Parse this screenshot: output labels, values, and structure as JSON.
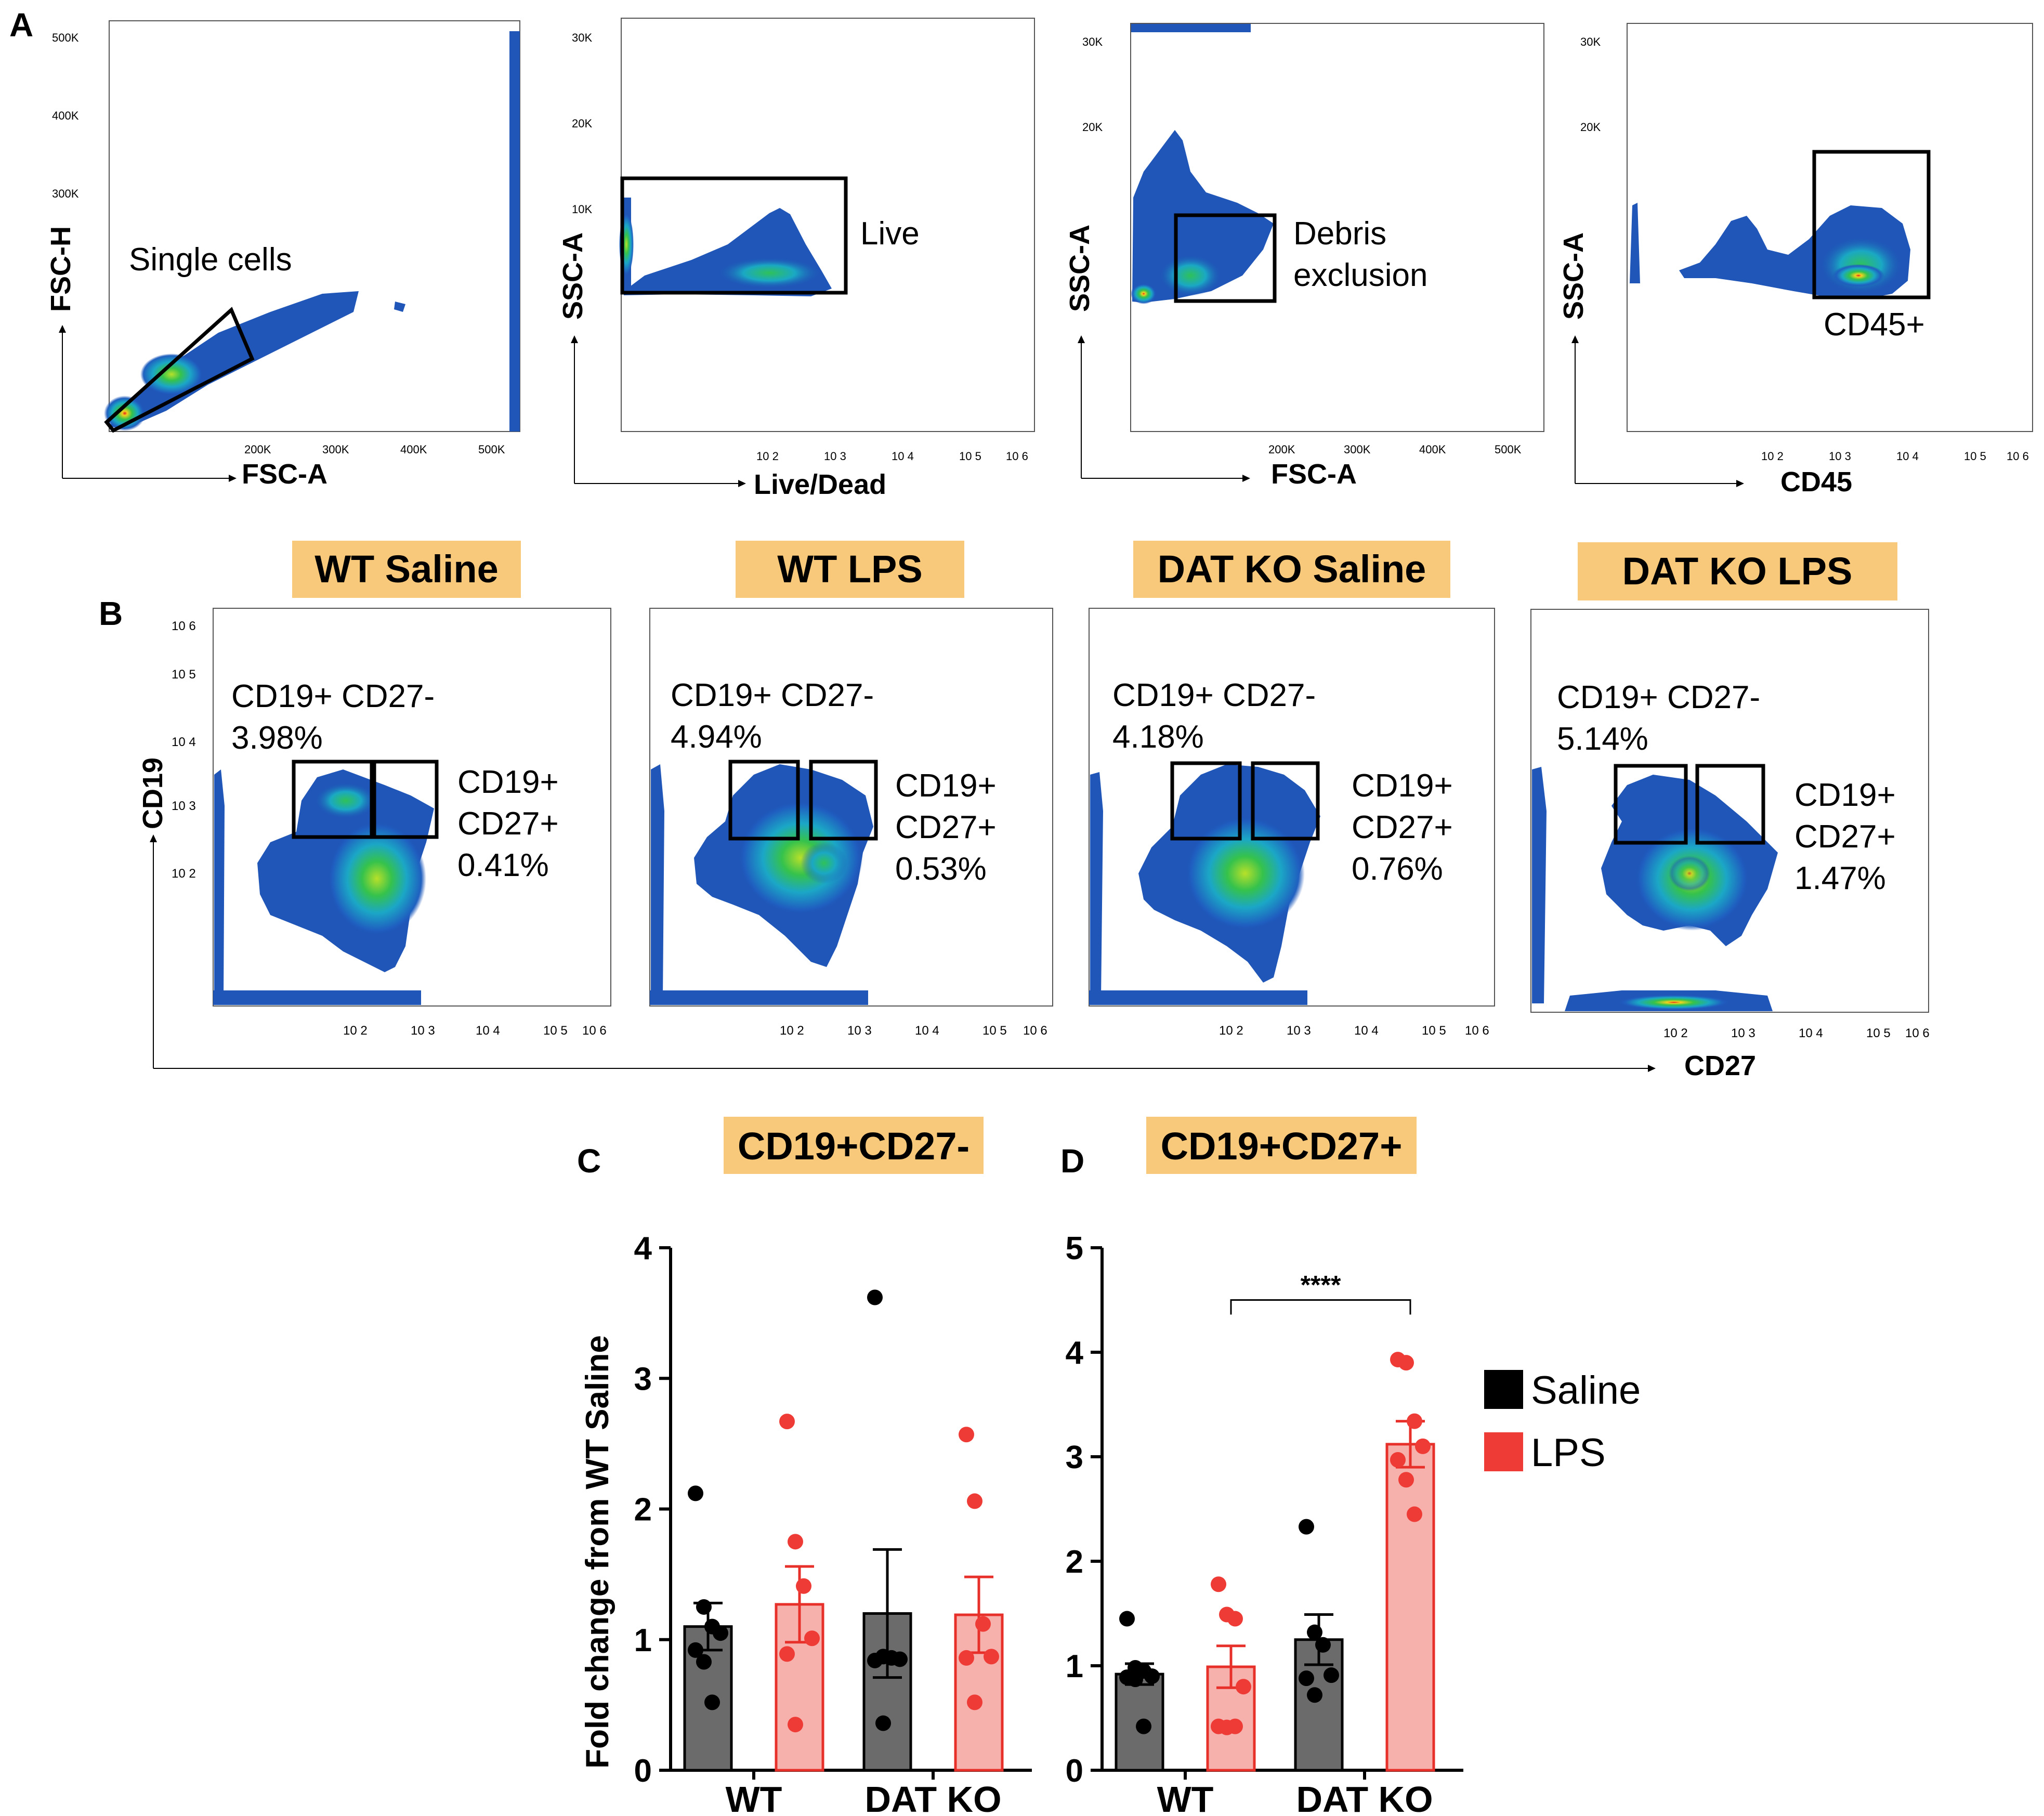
{
  "panel_labels": {
    "a": "A",
    "b": "B",
    "c": "C",
    "d": "D"
  },
  "panel_a": {
    "plots": [
      {
        "ylabel": "FSC-H",
        "xlabel": "FSC-A",
        "gate": "Single cells",
        "yticks": [
          "500K",
          "400K",
          "300K"
        ],
        "xticks": [
          "200K",
          "300K",
          "400K",
          "500K"
        ]
      },
      {
        "ylabel": "SSC-A",
        "xlabel": "Live/Dead",
        "gate": "Live",
        "yticks": [
          "30K",
          "20K",
          "10K"
        ],
        "xticks": [
          "10 2",
          "10 3",
          "10 4",
          "10 5",
          "10 6"
        ]
      },
      {
        "ylabel": "SSC-A",
        "xlabel": "FSC-A",
        "gate_line1": "Debris",
        "gate_line2": "exclusion",
        "yticks": [
          "30K",
          "20K"
        ],
        "xticks": [
          "200K",
          "300K",
          "400K",
          "500K"
        ]
      },
      {
        "ylabel": "SSC-A",
        "xlabel": "CD45",
        "gate": "CD45+",
        "yticks": [
          "30K",
          "20K"
        ],
        "xticks": [
          "10 2",
          "10 3",
          "10 4",
          "10 5",
          "10 6"
        ]
      }
    ]
  },
  "panel_b": {
    "ylabel": "CD19",
    "xlabel": "CD27",
    "yticks": [
      "10 6",
      "10 5",
      "10 4",
      "10 3",
      "10 2"
    ],
    "xticks": [
      "10 2",
      "10 3",
      "10 4",
      "10 5",
      "10 6"
    ],
    "groups": [
      {
        "title": "WT Saline",
        "neg_label": "CD19+ CD27-",
        "neg_pct": "3.98%",
        "pos_label1": "CD19+",
        "pos_label2": "CD27+",
        "pos_pct": "0.41%"
      },
      {
        "title": "WT LPS",
        "neg_label": "CD19+ CD27-",
        "neg_pct": "4.94%",
        "pos_label1": "CD19+",
        "pos_label2": "CD27+",
        "pos_pct": "0.53%"
      },
      {
        "title": "DAT KO Saline",
        "neg_label": "CD19+ CD27-",
        "neg_pct": "4.18%",
        "pos_label1": "CD19+",
        "pos_label2": "CD27+",
        "pos_pct": "0.76%"
      },
      {
        "title": "DAT KO LPS",
        "neg_label": "CD19+ CD27-",
        "neg_pct": "5.14%",
        "pos_label1": "CD19+",
        "pos_label2": "CD27+",
        "pos_pct": "1.47%"
      }
    ]
  },
  "colors": {
    "saline_bar": "#6b6b6b",
    "saline_point": "#000000",
    "lps_bar": "#f7b1ad",
    "lps_point": "#ef3b36",
    "lps_edge": "#e8302b",
    "header_bg": "#f8c97a",
    "flow_blue": "#1f56b8"
  },
  "legend": {
    "saline": "Saline",
    "lps": "LPS"
  },
  "chart_data": [
    {
      "type": "bar",
      "panel": "C",
      "title": "CD19+CD27-",
      "ylabel": "Fold change from WT Saline",
      "xlabel": "",
      "categories": [
        "WT",
        "DAT KO"
      ],
      "ylim": [
        0,
        4
      ],
      "yticks": [
        0,
        1,
        2,
        3,
        4
      ],
      "series": [
        {
          "name": "Saline",
          "values": [
            1.1,
            1.2
          ],
          "sem": [
            0.18,
            0.49
          ],
          "points": [
            [
              2.12,
              1.25,
              1.1,
              1.05,
              0.92,
              0.83,
              0.52
            ],
            [
              3.62,
              0.87,
              0.86,
              0.85,
              0.84,
              0.36
            ]
          ]
        },
        {
          "name": "LPS",
          "values": [
            1.27,
            1.19
          ],
          "sem": [
            0.29,
            0.29
          ],
          "points": [
            [
              2.67,
              1.75,
              1.41,
              1.01,
              0.89,
              0.35
            ],
            [
              2.57,
              2.06,
              1.12,
              0.87,
              0.86,
              0.52
            ]
          ]
        }
      ]
    },
    {
      "type": "bar",
      "panel": "D",
      "title": "CD19+CD27+",
      "ylabel": "",
      "xlabel": "",
      "categories": [
        "WT",
        "DAT KO"
      ],
      "ylim": [
        0,
        5
      ],
      "yticks": [
        0,
        1,
        2,
        3,
        4,
        5
      ],
      "significance": {
        "label": "****",
        "from": "WT LPS",
        "to": "DAT KO LPS"
      },
      "series": [
        {
          "name": "Saline",
          "values": [
            0.92,
            1.25
          ],
          "sem": [
            0.1,
            0.24
          ],
          "points": [
            [
              1.45,
              0.98,
              0.95,
              0.9,
              0.89,
              0.87,
              0.42
            ],
            [
              2.33,
              1.32,
              1.2,
              0.91,
              0.88,
              0.72
            ]
          ]
        },
        {
          "name": "LPS",
          "values": [
            0.99,
            3.12
          ],
          "sem": [
            0.2,
            0.22
          ],
          "points": [
            [
              1.78,
              1.49,
              1.45,
              0.8,
              0.42,
              0.41,
              0.42
            ],
            [
              3.93,
              3.9,
              3.34,
              3.1,
              2.97,
              2.78,
              2.45
            ]
          ]
        }
      ]
    }
  ]
}
